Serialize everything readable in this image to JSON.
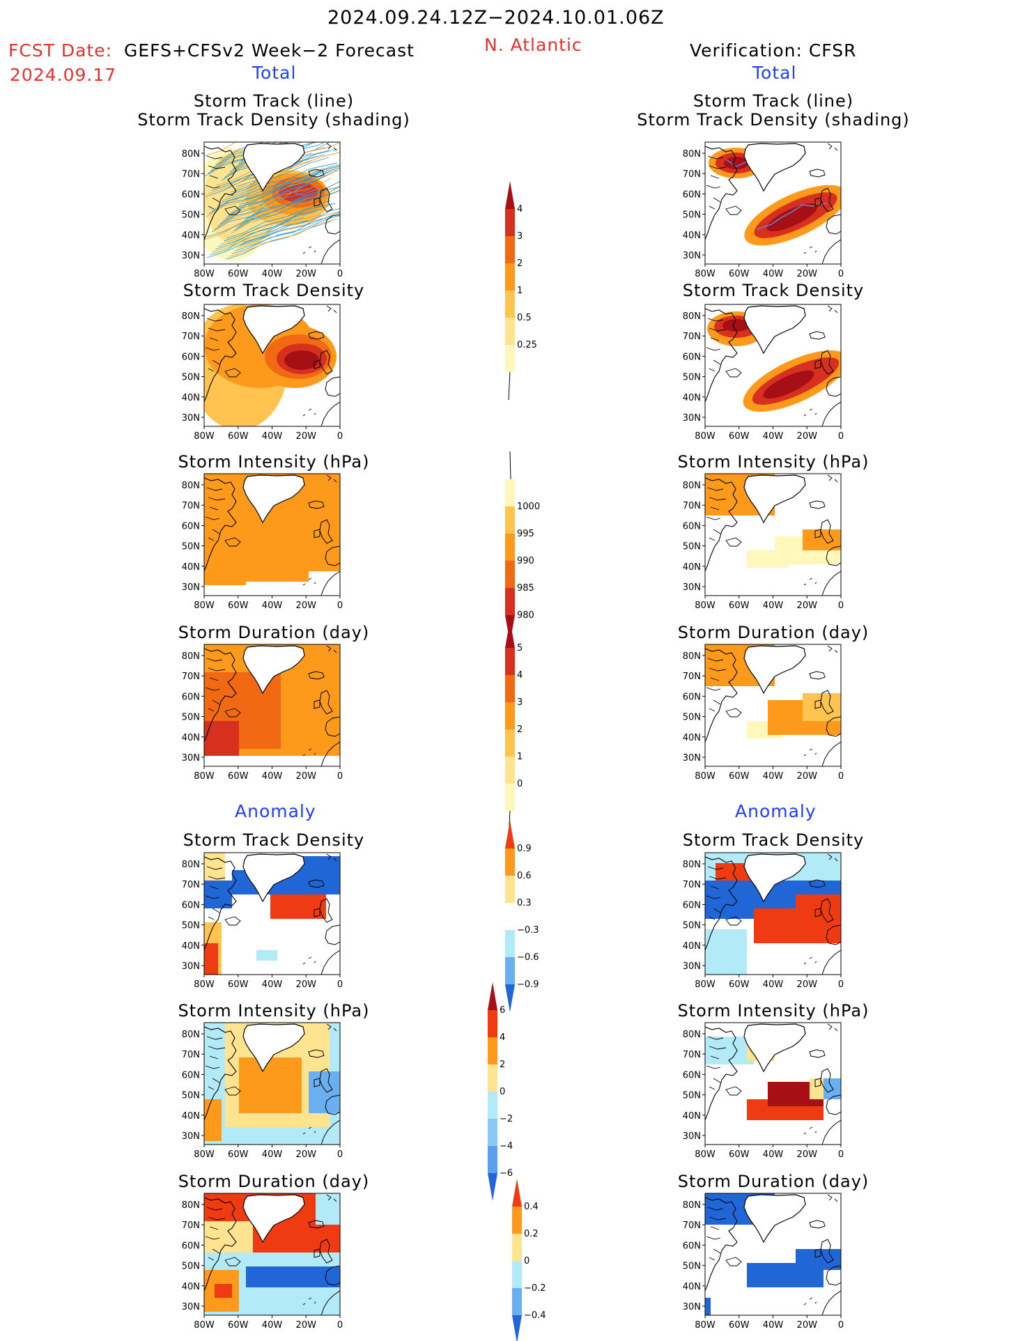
{
  "header": {
    "date_range": "2024.09.24.12Z−2024.10.01.06Z",
    "fcst_label": "FCST Date:",
    "fcst_model": "GEFS+CFSv2 Week−2 Forecast",
    "fcst_date": "2024.09.17",
    "region": "N. Atlantic",
    "verification": "Verification: CFSR"
  },
  "sections": {
    "total": "Total",
    "anomaly": "Anomaly"
  },
  "panel_titles": {
    "track_line": "Storm Track (line)",
    "track_density_shading": "Storm Track Density (shading)",
    "track_density": "Storm Track Density",
    "intensity": "Storm Intensity (hPa)",
    "duration": "Storm Duration (day)"
  },
  "axes": {
    "lat_ticks": [
      "80N",
      "70N",
      "60N",
      "50N",
      "40N",
      "30N"
    ],
    "lon_ticks": [
      "80W",
      "60W",
      "40W",
      "20W",
      "0"
    ]
  },
  "colorbars": {
    "density": {
      "labels": [
        "4",
        "3",
        "2",
        "1",
        "0.5",
        "0.25"
      ],
      "colors": [
        "#a50f15",
        "#d7301f",
        "#f16913",
        "#fd9a1c",
        "#fec44f",
        "#fee391",
        "#fff7bc"
      ]
    },
    "intensity": {
      "labels": [
        "1000",
        "995",
        "990",
        "985",
        "980"
      ],
      "colors": [
        "#fff7bc",
        "#fec44f",
        "#fd9a1c",
        "#f16913",
        "#d7301f",
        "#a50f15"
      ]
    },
    "duration": {
      "labels": [
        "5",
        "4",
        "3",
        "2",
        "1",
        "0"
      ],
      "colors": [
        "#a50f15",
        "#d7301f",
        "#f16913",
        "#fd9a1c",
        "#fec44f",
        "#fee391",
        "#fff7bc"
      ]
    },
    "density_anom": {
      "labels": [
        "0.9",
        "0.6",
        "0.3",
        "−0.3",
        "−0.6",
        "−0.9"
      ],
      "colors": [
        "#ef3b12",
        "#fd9a1c",
        "#fee391",
        "#ffffff",
        "#b2ebf7",
        "#6ab0f0",
        "#2166d6"
      ]
    },
    "intensity_anom": {
      "labels": [
        "6",
        "4",
        "2",
        "0",
        "−2",
        "−4",
        "−6"
      ],
      "colors": [
        "#a50f15",
        "#ef3b12",
        "#fd9a1c",
        "#fee391",
        "#b2ebf7",
        "#8cc8f5",
        "#5aa0ee",
        "#2166d6"
      ]
    },
    "duration_anom": {
      "labels": [
        "0.4",
        "0.2",
        "0",
        "−0.2",
        "−0.4"
      ],
      "colors": [
        "#ef3b12",
        "#fd9a1c",
        "#fee391",
        "#b2ebf7",
        "#6ab0f0",
        "#2166d6"
      ]
    }
  }
}
